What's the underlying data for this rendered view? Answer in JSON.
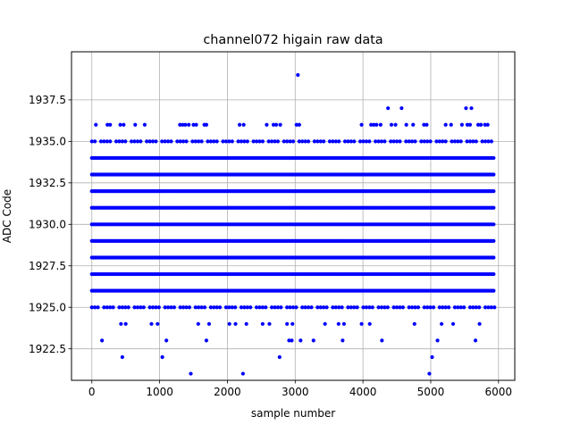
{
  "chart_data": {
    "type": "scatter",
    "title": "channel072 higain raw data",
    "xlabel": "sample number",
    "ylabel": "ADC Code",
    "xlim": [
      -300,
      6240
    ],
    "ylim": [
      1920.6,
      1940.4
    ],
    "xticks": [
      0,
      1000,
      2000,
      3000,
      4000,
      5000,
      6000
    ],
    "xtick_labels": [
      "0",
      "1000",
      "2000",
      "3000",
      "4000",
      "5000",
      "6000"
    ],
    "yticks": [
      1922.5,
      1925.0,
      1927.5,
      1930.0,
      1932.5,
      1935.0,
      1937.5
    ],
    "ytick_labels": [
      "1922.5",
      "1925.0",
      "1927.5",
      "1930.0",
      "1932.5",
      "1935.0",
      "1937.5"
    ],
    "grid": true,
    "legend": false,
    "marker_color": "#0000ff",
    "sample_count": 5950,
    "dense_levels": [
      1926,
      1927,
      1928,
      1929,
      1930,
      1931,
      1932,
      1933,
      1934
    ],
    "semi_dense_levels": [
      1925,
      1935
    ],
    "sparse_points": [
      {
        "x": 60,
        "y": 1936
      },
      {
        "x": 230,
        "y": 1936
      },
      {
        "x": 270,
        "y": 1936
      },
      {
        "x": 420,
        "y": 1936
      },
      {
        "x": 470,
        "y": 1936
      },
      {
        "x": 640,
        "y": 1936
      },
      {
        "x": 780,
        "y": 1936
      },
      {
        "x": 1300,
        "y": 1936
      },
      {
        "x": 1340,
        "y": 1936
      },
      {
        "x": 1380,
        "y": 1936
      },
      {
        "x": 1430,
        "y": 1936
      },
      {
        "x": 1500,
        "y": 1936
      },
      {
        "x": 1540,
        "y": 1936
      },
      {
        "x": 1660,
        "y": 1936
      },
      {
        "x": 1690,
        "y": 1936
      },
      {
        "x": 2180,
        "y": 1936
      },
      {
        "x": 2240,
        "y": 1936
      },
      {
        "x": 2580,
        "y": 1936
      },
      {
        "x": 2680,
        "y": 1936
      },
      {
        "x": 2720,
        "y": 1936
      },
      {
        "x": 2780,
        "y": 1936
      },
      {
        "x": 3020,
        "y": 1936
      },
      {
        "x": 3060,
        "y": 1936
      },
      {
        "x": 3980,
        "y": 1936
      },
      {
        "x": 4120,
        "y": 1936
      },
      {
        "x": 4160,
        "y": 1936
      },
      {
        "x": 4200,
        "y": 1936
      },
      {
        "x": 4260,
        "y": 1936
      },
      {
        "x": 4420,
        "y": 1936
      },
      {
        "x": 4480,
        "y": 1936
      },
      {
        "x": 4640,
        "y": 1936
      },
      {
        "x": 4740,
        "y": 1936
      },
      {
        "x": 4900,
        "y": 1936
      },
      {
        "x": 4940,
        "y": 1936
      },
      {
        "x": 5220,
        "y": 1936
      },
      {
        "x": 5300,
        "y": 1936
      },
      {
        "x": 5460,
        "y": 1936
      },
      {
        "x": 5540,
        "y": 1936
      },
      {
        "x": 5580,
        "y": 1936
      },
      {
        "x": 5700,
        "y": 1936
      },
      {
        "x": 5740,
        "y": 1936
      },
      {
        "x": 5800,
        "y": 1936
      },
      {
        "x": 5840,
        "y": 1936
      },
      {
        "x": 4370,
        "y": 1937
      },
      {
        "x": 4570,
        "y": 1937
      },
      {
        "x": 5520,
        "y": 1937
      },
      {
        "x": 5600,
        "y": 1937
      },
      {
        "x": 3040,
        "y": 1939
      },
      {
        "x": 430,
        "y": 1924
      },
      {
        "x": 500,
        "y": 1924
      },
      {
        "x": 880,
        "y": 1924
      },
      {
        "x": 970,
        "y": 1924
      },
      {
        "x": 1570,
        "y": 1924
      },
      {
        "x": 1730,
        "y": 1924
      },
      {
        "x": 2030,
        "y": 1924
      },
      {
        "x": 2120,
        "y": 1924
      },
      {
        "x": 2280,
        "y": 1924
      },
      {
        "x": 2520,
        "y": 1924
      },
      {
        "x": 2620,
        "y": 1924
      },
      {
        "x": 2880,
        "y": 1924
      },
      {
        "x": 2960,
        "y": 1924
      },
      {
        "x": 3440,
        "y": 1924
      },
      {
        "x": 3640,
        "y": 1924
      },
      {
        "x": 3720,
        "y": 1924
      },
      {
        "x": 3980,
        "y": 1924
      },
      {
        "x": 4100,
        "y": 1924
      },
      {
        "x": 4760,
        "y": 1924
      },
      {
        "x": 5160,
        "y": 1924
      },
      {
        "x": 5330,
        "y": 1924
      },
      {
        "x": 5720,
        "y": 1924
      },
      {
        "x": 150,
        "y": 1923
      },
      {
        "x": 1100,
        "y": 1923
      },
      {
        "x": 1690,
        "y": 1923
      },
      {
        "x": 2910,
        "y": 1923
      },
      {
        "x": 2950,
        "y": 1923
      },
      {
        "x": 3080,
        "y": 1923
      },
      {
        "x": 3270,
        "y": 1923
      },
      {
        "x": 3700,
        "y": 1923
      },
      {
        "x": 4280,
        "y": 1923
      },
      {
        "x": 5100,
        "y": 1923
      },
      {
        "x": 5660,
        "y": 1923
      },
      {
        "x": 450,
        "y": 1922
      },
      {
        "x": 1040,
        "y": 1922
      },
      {
        "x": 2770,
        "y": 1922
      },
      {
        "x": 5020,
        "y": 1922
      },
      {
        "x": 1460,
        "y": 1921
      },
      {
        "x": 2230,
        "y": 1921
      },
      {
        "x": 4980,
        "y": 1921
      }
    ]
  }
}
